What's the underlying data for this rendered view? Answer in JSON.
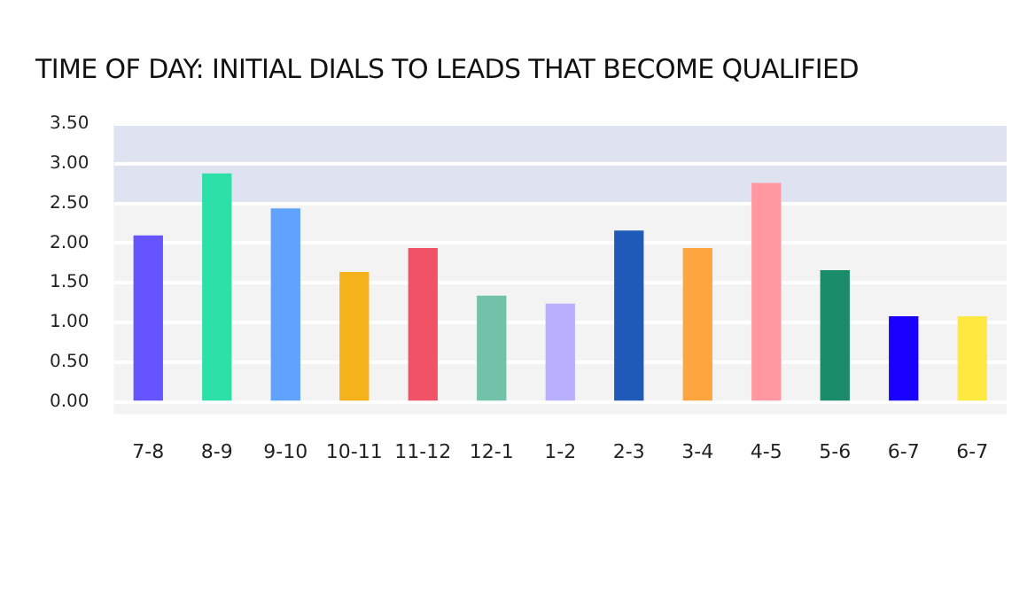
{
  "chart_data": {
    "type": "bar",
    "title": "TIME OF DAY: INITIAL DIALS TO LEADS THAT BECOME QUALIFIED",
    "categories": [
      "7-8",
      "8-9",
      "9-10",
      "10-11",
      "11-12",
      "12-1",
      "1-2",
      "2-3",
      "3-4",
      "4-5",
      "5-6",
      "6-7",
      "6-7"
    ],
    "values": [
      2.09,
      2.87,
      2.43,
      1.63,
      1.93,
      1.33,
      1.23,
      2.15,
      1.93,
      2.75,
      1.65,
      1.07,
      1.07
    ],
    "colors": [
      "#6655ff",
      "#2de0a8",
      "#5fa3ff",
      "#f5b21b",
      "#f25266",
      "#72c2aa",
      "#b8b0ff",
      "#1f5ab8",
      "#ffa53f",
      "#ff98a0",
      "#1a8c6a",
      "#1a00ff",
      "#ffe83f"
    ],
    "ylim": [
      0,
      3.5
    ],
    "yticks": [
      {
        "value": 0,
        "label": "0.00"
      },
      {
        "value": 0.5,
        "label": "0.50"
      },
      {
        "value": 1,
        "label": "1.00"
      },
      {
        "value": 1.5,
        "label": "1.50"
      },
      {
        "value": 2,
        "label": "2.00"
      },
      {
        "value": 2.5,
        "label": "2.50"
      },
      {
        "value": 3,
        "label": "3.00"
      },
      {
        "value": 3.5,
        "label": "3.50"
      }
    ],
    "bands": [
      {
        "axis": "y",
        "from": 2.5,
        "to": 3.5,
        "color": "#dfe2f0"
      }
    ],
    "grid": "y"
  }
}
